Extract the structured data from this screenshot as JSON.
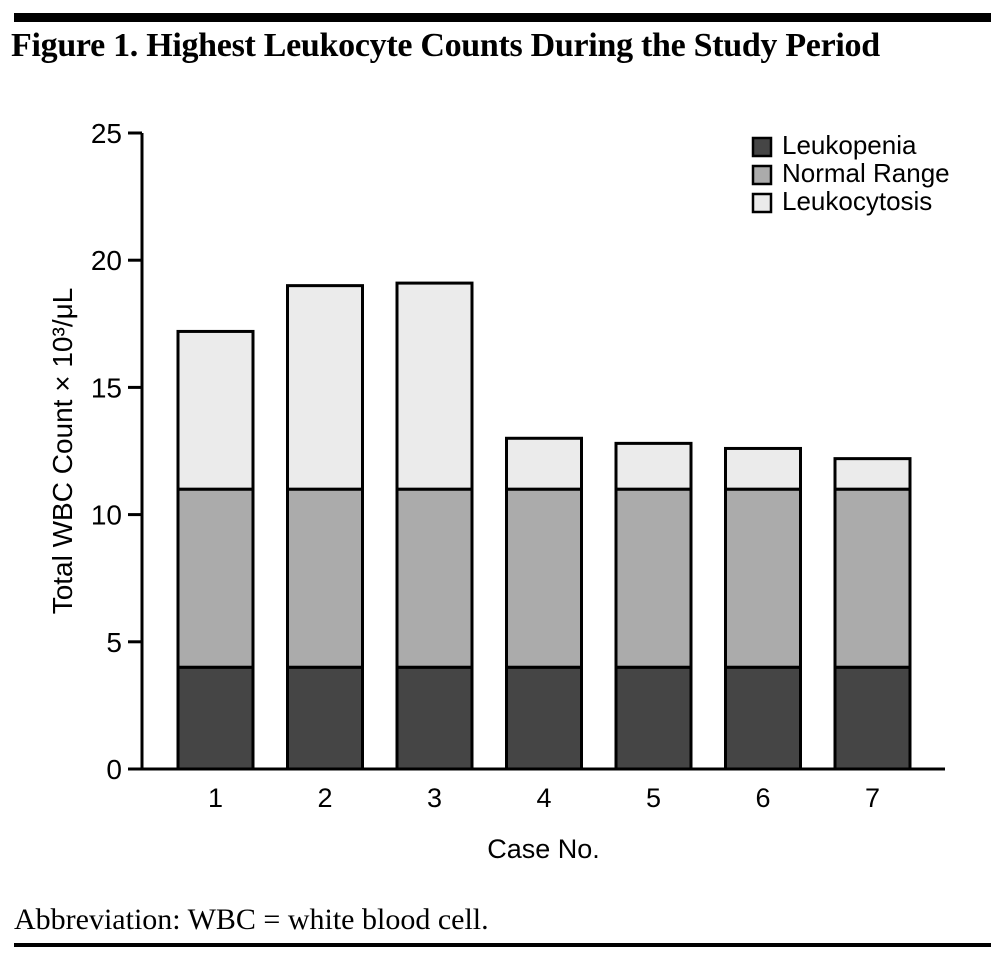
{
  "figure": {
    "title": "Figure 1. Highest Leukocyte Counts During the Study Period",
    "footnote": "Abbreviation: WBC = white blood cell."
  },
  "chart_data": {
    "type": "bar",
    "stacked": true,
    "categories": [
      "1",
      "2",
      "3",
      "4",
      "5",
      "6",
      "7"
    ],
    "series": [
      {
        "name": "Leukopenia",
        "color": "#454545",
        "values": [
          4,
          4,
          4,
          4,
          4,
          4,
          4
        ]
      },
      {
        "name": "Normal Range",
        "color": "#ababab",
        "values": [
          7,
          7,
          7,
          7,
          7,
          7,
          7
        ]
      },
      {
        "name": "Leukocytosis",
        "color": "#ebebeb",
        "values": [
          6.2,
          8.0,
          8.1,
          2.0,
          1.8,
          1.6,
          1.2
        ]
      }
    ],
    "totals": [
      17.2,
      19.0,
      19.1,
      13.0,
      12.8,
      12.6,
      12.2
    ],
    "xlabel": "Case No.",
    "ylabel": "Total WBC Count × 10³/μL",
    "ylim": [
      0,
      25
    ],
    "yticks": [
      0,
      5,
      10,
      15,
      20,
      25
    ],
    "legend_position": "top-right",
    "grid": false,
    "axis_color": "#000000",
    "bar_outline": "#000000"
  }
}
